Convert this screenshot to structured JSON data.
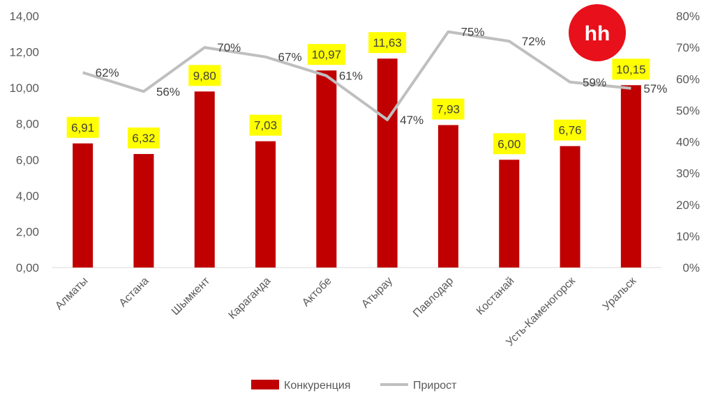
{
  "colors": {
    "bar": "#C00000",
    "line": "#BFBFBF",
    "label_highlight": "#FFFF00",
    "logo_bg": "#E8111B",
    "logo_text": "#FFFFFF"
  },
  "logo": {
    "text": "hh"
  },
  "chart_data": {
    "type": "bar",
    "categories": [
      "Алматы",
      "Астана",
      "Шымкент",
      "Караганда",
      "Актобе",
      "Атырау",
      "Павлодар",
      "Костанай",
      "Усть-Каменогорск",
      "Уральск"
    ],
    "series": [
      {
        "name": "Конкуренция",
        "type": "bar",
        "axis": "left",
        "values": [
          6.91,
          6.32,
          9.8,
          7.03,
          10.97,
          11.63,
          7.93,
          6.0,
          6.76,
          10.15
        ],
        "labels": [
          "6,91",
          "6,32",
          "9,80",
          "7,03",
          "10,97",
          "11,63",
          "7,93",
          "6,00",
          "6,76",
          "10,15"
        ]
      },
      {
        "name": "Прирост",
        "type": "line",
        "axis": "right",
        "values": [
          62,
          56,
          70,
          67,
          61,
          47,
          75,
          72,
          59,
          57
        ],
        "labels": [
          "62%",
          "56%",
          "70%",
          "67%",
          "61%",
          "47%",
          "75%",
          "72%",
          "59%",
          "57%"
        ]
      }
    ],
    "y_left": {
      "lim": [
        0,
        14
      ],
      "ticks": [
        0,
        2,
        4,
        6,
        8,
        10,
        12,
        14
      ],
      "tick_labels": [
        "0,00",
        "2,00",
        "4,00",
        "6,00",
        "8,00",
        "10,00",
        "12,00",
        "14,00"
      ]
    },
    "y_right": {
      "lim": [
        0,
        80
      ],
      "ticks": [
        0,
        10,
        20,
        30,
        40,
        50,
        60,
        70,
        80
      ],
      "tick_labels": [
        "0%",
        "10%",
        "20%",
        "30%",
        "40%",
        "50%",
        "60%",
        "70%",
        "80%"
      ]
    },
    "grid": false,
    "legend_position": "bottom"
  }
}
